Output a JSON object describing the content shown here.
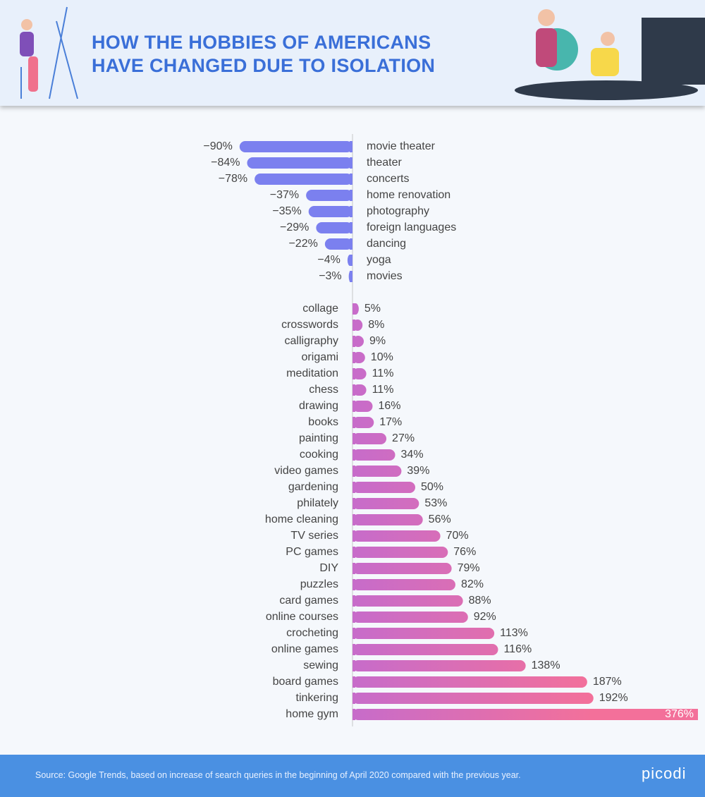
{
  "chart_data": {
    "type": "bar",
    "orientation": "horizontal",
    "title": "HOW THE HOBBIES OF AMERICANS HAVE CHANGED DUE TO ISOLATION",
    "source": "Source: Google Trends, based on increase of search queries in the beginning of April 2020 compared with the previous year.",
    "brand": "picodi",
    "groups": [
      {
        "color": "#7b80ef",
        "categories": [
          "movie theater",
          "theater",
          "concerts",
          "home renovation",
          "photography",
          "foreign languages",
          "dancing",
          "yoga",
          "movies"
        ],
        "values": [
          -90,
          -84,
          -78,
          -37,
          -35,
          -29,
          -22,
          -4,
          -3
        ],
        "value_labels": [
          "−90%",
          "−84%",
          "−78%",
          "−37%",
          "−35%",
          "−29%",
          "−22%",
          "−4%",
          "−3%"
        ]
      },
      {
        "color": [
          "#c76cca",
          "#f3709a"
        ],
        "categories": [
          "collage",
          "crosswords",
          "calligraphy",
          "origami",
          "meditation",
          "chess",
          "drawing",
          "books",
          "painting",
          "cooking",
          "video games",
          "gardening",
          "philately",
          "home cleaning",
          "TV series",
          "PC games",
          "DIY",
          "puzzles",
          "card games",
          "online courses",
          "crocheting",
          "online games",
          "sewing",
          "board games",
          "tinkering",
          "home gym"
        ],
        "values": [
          5,
          8,
          9,
          10,
          11,
          11,
          16,
          17,
          27,
          34,
          39,
          50,
          53,
          56,
          70,
          76,
          79,
          82,
          88,
          92,
          113,
          116,
          138,
          187,
          192,
          376
        ],
        "value_labels": [
          "5%",
          "8%",
          "9%",
          "10%",
          "11%",
          "11%",
          "16%",
          "17%",
          "27%",
          "34%",
          "39%",
          "50%",
          "53%",
          "56%",
          "70%",
          "76%",
          "79%",
          "82%",
          "88%",
          "92%",
          "113%",
          "116%",
          "138%",
          "187%",
          "192%",
          "376%"
        ]
      }
    ]
  }
}
